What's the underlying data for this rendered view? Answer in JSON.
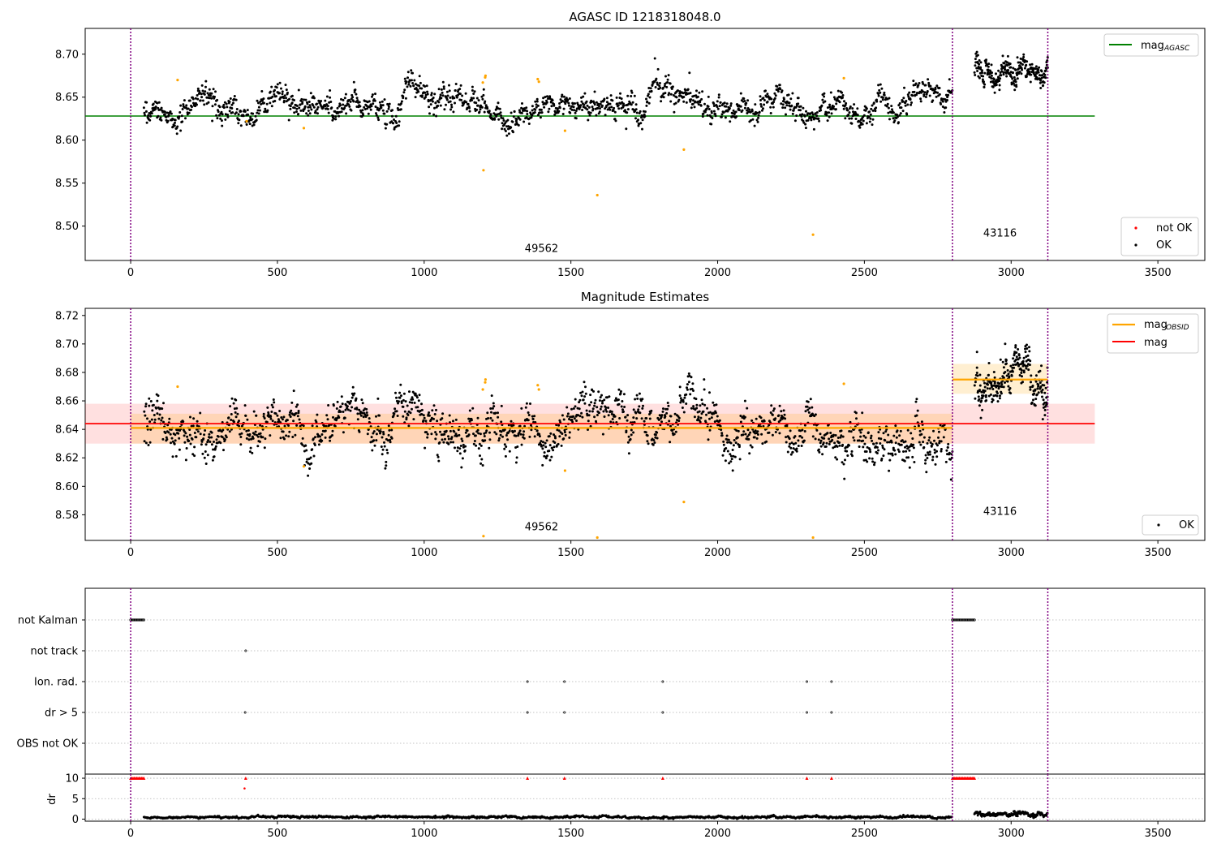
{
  "figure_title": "AGASC ID 1218318048.0",
  "chart_data": [
    {
      "type": "scatter",
      "title": "AGASC ID 1218318048.0",
      "xlim": [
        -155,
        3660
      ],
      "ylim": [
        8.46,
        8.73
      ],
      "xticks": [
        0,
        500,
        1000,
        1500,
        2000,
        2500,
        3000,
        3500
      ],
      "yticks": [
        8.5,
        8.55,
        8.6,
        8.65,
        8.7
      ],
      "ytick_labels": [
        "8.50",
        "8.55",
        "8.60",
        "8.65",
        "8.70"
      ],
      "grid": false,
      "vlines_x": [
        0,
        2800,
        3125
      ],
      "obsid_labels": [
        {
          "text": "49562",
          "x": 1400,
          "y": 8.47
        },
        {
          "text": "43116",
          "x": 2962,
          "y": 8.488
        }
      ],
      "reference_line": {
        "name": "mag_AGASC",
        "y": 8.628,
        "x_range": [
          0,
          3285
        ],
        "color": "#008000"
      },
      "ok_points": {
        "segments": [
          {
            "x_range": [
              45,
              2800
            ],
            "n": 1700,
            "base": 8.641,
            "noise": 0.008
          },
          {
            "x_range": [
              2875,
              3125
            ],
            "n": 260,
            "base": 8.676,
            "noise": 0.008
          }
        ]
      },
      "flagged_points": [
        {
          "x": 160,
          "y": 8.67
        },
        {
          "x": 395,
          "y": 8.622
        },
        {
          "x": 590,
          "y": 8.614
        },
        {
          "x": 1200,
          "y": 8.667
        },
        {
          "x": 1202,
          "y": 8.565
        },
        {
          "x": 1208,
          "y": 8.673
        },
        {
          "x": 1209,
          "y": 8.675
        },
        {
          "x": 1387,
          "y": 8.671
        },
        {
          "x": 1391,
          "y": 8.668
        },
        {
          "x": 1480,
          "y": 8.611
        },
        {
          "x": 1590,
          "y": 8.536
        },
        {
          "x": 1885,
          "y": 8.589
        },
        {
          "x": 2325,
          "y": 8.49
        },
        {
          "x": 2430,
          "y": 8.672
        }
      ],
      "legend": {
        "upper_right": [
          {
            "label": "mag",
            "sub": "AGASC",
            "color": "#008000"
          }
        ],
        "lower_right": [
          {
            "label": "not OK",
            "color": "#ff0000"
          },
          {
            "label": "OK",
            "color": "#000000"
          }
        ]
      }
    },
    {
      "type": "scatter",
      "title": "Magnitude Estimates",
      "xlim": [
        -155,
        3660
      ],
      "ylim": [
        8.562,
        8.725
      ],
      "xticks": [
        0,
        500,
        1000,
        1500,
        2000,
        2500,
        3000,
        3500
      ],
      "yticks": [
        8.58,
        8.6,
        8.62,
        8.64,
        8.66,
        8.68,
        8.7,
        8.72
      ],
      "ytick_labels": [
        "8.58",
        "8.60",
        "8.62",
        "8.64",
        "8.66",
        "8.68",
        "8.70",
        "8.72"
      ],
      "grid": false,
      "vlines_x": [
        0,
        2800,
        3125
      ],
      "obsid_labels": [
        {
          "text": "49562",
          "x": 1400,
          "y": 8.569
        },
        {
          "text": "43116",
          "x": 2962,
          "y": 8.58
        }
      ],
      "mag_line": {
        "name": "mag",
        "y": 8.644,
        "band": [
          8.63,
          8.658
        ],
        "x_range": [
          0,
          3285
        ],
        "color": "#ff0000"
      },
      "obsid_mags": [
        {
          "x_range": [
            0,
            2800
          ],
          "y": 8.641,
          "band": [
            8.63,
            8.651
          ]
        },
        {
          "x_range": [
            2800,
            3125
          ],
          "y": 8.675,
          "band": [
            8.665,
            8.686
          ]
        }
      ],
      "ok_points": {
        "segments": [
          {
            "x_range": [
              45,
              2800
            ],
            "n": 1700,
            "base": 8.641,
            "noise": 0.008
          },
          {
            "x_range": [
              2875,
              3125
            ],
            "n": 260,
            "base": 8.676,
            "noise": 0.008
          }
        ]
      },
      "flagged_points": [
        {
          "x": 160,
          "y": 8.67
        },
        {
          "x": 590,
          "y": 8.614
        },
        {
          "x": 1200,
          "y": 8.668
        },
        {
          "x": 1202,
          "y": 8.565
        },
        {
          "x": 1208,
          "y": 8.673
        },
        {
          "x": 1209,
          "y": 8.675
        },
        {
          "x": 1387,
          "y": 8.671
        },
        {
          "x": 1391,
          "y": 8.668
        },
        {
          "x": 1480,
          "y": 8.611
        },
        {
          "x": 1590,
          "y": 8.564
        },
        {
          "x": 1885,
          "y": 8.589
        },
        {
          "x": 2325,
          "y": 8.564
        },
        {
          "x": 2430,
          "y": 8.672
        }
      ],
      "legend": {
        "upper_right": [
          {
            "label": "mag",
            "sub": "OBSID",
            "color": "#ffa500"
          },
          {
            "label": "mag",
            "sub": "",
            "color": "#ff0000"
          }
        ],
        "lower_right": [
          {
            "label": "OK",
            "color": "#000000"
          }
        ]
      }
    },
    {
      "type": "scatter",
      "title": "",
      "xlim": [
        -155,
        3660
      ],
      "categories": [
        "not Kalman",
        "not track",
        "Ion. rad.",
        "dr > 5",
        "OBS not OK"
      ],
      "vlines_x": [
        0,
        2800,
        3125
      ],
      "flag_points": {
        "not Kalman": [
          {
            "x_range": [
              0,
              45
            ],
            "n": 12
          },
          {
            "x_range": [
              2800,
              2875
            ],
            "n": 20
          }
        ],
        "not track": [
          392
        ],
        "Ion. rad.": [
          1352,
          1478,
          1813,
          2304,
          2388
        ],
        "dr > 5": [
          390,
          1352,
          1478,
          1813,
          2304,
          2388
        ],
        "OBS not OK": []
      }
    },
    {
      "type": "scatter",
      "xlim": [
        -155,
        3660
      ],
      "ylim": [
        -0.5,
        11
      ],
      "yticks": [
        0,
        5,
        10
      ],
      "ytick_labels": [
        "0",
        "5",
        "10"
      ],
      "xticks": [
        0,
        500,
        1000,
        1500,
        2000,
        2500,
        3000,
        3500
      ],
      "ylabel": "dr",
      "vlines_x": [
        0,
        2800,
        3125
      ],
      "capped_points_y": 10,
      "capped_points_x": [
        {
          "x_range": [
            0,
            45
          ],
          "n": 12
        },
        {
          "x_range": [
            2800,
            2875
          ],
          "n": 20
        },
        392,
        1352,
        1478,
        1813,
        2304,
        2388
      ],
      "extra_red_points": [
        {
          "x": 388,
          "y": 7.5
        }
      ],
      "black_dr_segments": [
        {
          "x_range": [
            45,
            2800
          ],
          "n": 1700,
          "base": 0.5,
          "noise": 0.2
        },
        {
          "x_range": [
            2875,
            3125
          ],
          "n": 260,
          "base": 1.2,
          "noise": 0.35
        }
      ]
    }
  ]
}
